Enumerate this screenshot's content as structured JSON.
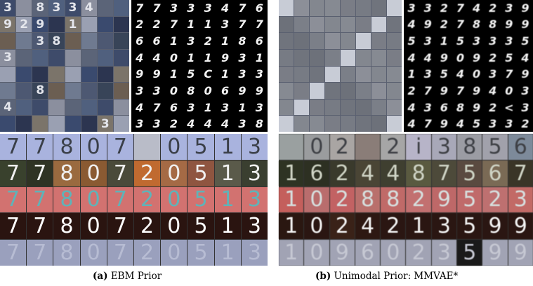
{
  "panels": [
    {
      "caption_tag": "(a)",
      "caption_text": "EBM Prior",
      "svhn_digits": [
        [
          "3",
          "",
          "8",
          "3",
          "3",
          "4",
          "",
          ""
        ],
        [
          "9",
          "2",
          "9",
          "",
          "1",
          "",
          "",
          ""
        ],
        [
          "",
          "",
          "3",
          "8",
          "",
          "",
          "",
          ""
        ],
        [
          "3",
          "",
          "",
          "",
          "",
          "",
          "",
          ""
        ],
        [
          "",
          "",
          "",
          "",
          "",
          "",
          "",
          ""
        ],
        [
          "",
          "",
          "8",
          "",
          "",
          "",
          "",
          ""
        ],
        [
          "4",
          "",
          "",
          "",
          "",
          "",
          "",
          ""
        ],
        [
          "",
          "",
          "",
          "",
          "",
          "",
          "3",
          ""
        ]
      ],
      "mnist_digits": [
        [
          "7",
          "7",
          "3",
          "3",
          "3",
          "4",
          "7",
          "6"
        ],
        [
          "2",
          "2",
          "7",
          "1",
          "1",
          "3",
          "7",
          "7"
        ],
        [
          "6",
          "6",
          "1",
          "3",
          "2",
          "1",
          "8",
          "6"
        ],
        [
          "4",
          "4",
          "0",
          "1",
          "1",
          "9",
          "3",
          "1"
        ],
        [
          "9",
          "9",
          "1",
          "5",
          "C",
          "1",
          "3",
          "3"
        ],
        [
          "3",
          "3",
          "0",
          "8",
          "0",
          "6",
          "9",
          "9"
        ],
        [
          "4",
          "7",
          "6",
          "3",
          "1",
          "3",
          "1",
          "3"
        ],
        [
          "3",
          "3",
          "2",
          "4",
          "4",
          "4",
          "3",
          "8"
        ]
      ],
      "color_rows": [
        {
          "bg": [
            "#a9b3de",
            "#a9b3de",
            "#a9b3de",
            "#a9b3de",
            "#a9b3de",
            "#b9bcc8",
            "#a9b3de",
            "#a9b3de",
            "#a9b3de",
            "#a9b3de"
          ],
          "fg": "#3a3f48",
          "digits": [
            "7",
            "7",
            "8",
            "0",
            "7",
            "",
            "0",
            "5",
            "1",
            "3"
          ]
        },
        {
          "bg": [
            "#39412d",
            "#2f3324",
            "#9a6a3f",
            "#8a5a32",
            "#4a4a3a",
            "#c06a30",
            "#a56a45",
            "#8f5540",
            "#5a5a4a",
            "#3a3f30"
          ],
          "fg": "#f0f0f0",
          "digits": [
            "7",
            "7",
            "8",
            "0",
            "7",
            "2",
            "0",
            "5",
            "1",
            "3"
          ]
        },
        {
          "bg": [
            "#d27270",
            "#d27270",
            "#d27270",
            "#d27270",
            "#d27270",
            "#d27270",
            "#d27270",
            "#d27270",
            "#d27270",
            "#d27270"
          ],
          "fg": "#5fb3b8",
          "digits": [
            "7",
            "7",
            "8",
            "0",
            "7",
            "2",
            "0",
            "5",
            "1",
            "3"
          ]
        },
        {
          "bg": [
            "#2a1410",
            "#2a1410",
            "#2a1410",
            "#2a1410",
            "#2a1410",
            "#2a1410",
            "#2a1410",
            "#2a1410",
            "#2a1410",
            "#2a1410"
          ],
          "fg": "#ffffff",
          "digits": [
            "7",
            "7",
            "8",
            "0",
            "7",
            "2",
            "0",
            "5",
            "1",
            "3"
          ]
        },
        {
          "bg": [
            "#9aa0bd",
            "#9aa0bd",
            "#9aa0bd",
            "#9aa0bd",
            "#9aa0bd",
            "#9aa0bd",
            "#9aa0bd",
            "#9aa0bd",
            "#9aa0bd",
            "#9aa0bd"
          ],
          "fg": "#b7bcd3",
          "digits": [
            "7",
            "7",
            "8",
            "0",
            "7",
            "2",
            "0",
            "5",
            "1",
            "3"
          ]
        }
      ]
    },
    {
      "caption_tag": "(b)",
      "caption_text": "Unimodal Prior: MMVAE*",
      "svhn_digits": [
        [
          "",
          "",
          "",
          "",
          "",
          "",
          "",
          ""
        ],
        [
          "",
          "",
          "",
          "",
          "",
          "",
          "",
          ""
        ],
        [
          "",
          "",
          "",
          "",
          "",
          "",
          "",
          ""
        ],
        [
          "",
          "",
          "",
          "",
          "",
          "",
          "",
          ""
        ],
        [
          "",
          "",
          "",
          "",
          "",
          "",
          "",
          ""
        ],
        [
          "",
          "",
          "",
          "",
          "",
          "",
          "",
          ""
        ],
        [
          "",
          "",
          "",
          "",
          "",
          "",
          "",
          ""
        ],
        [
          "",
          "",
          "",
          "",
          "",
          "",
          "",
          ""
        ]
      ],
      "mnist_digits": [
        [
          "3",
          "3",
          "2",
          "7",
          "4",
          "2",
          "3",
          "9"
        ],
        [
          "4",
          "9",
          "2",
          "7",
          "8",
          "8",
          "9",
          "9"
        ],
        [
          "5",
          "3",
          "1",
          "5",
          "3",
          "3",
          "3",
          "5"
        ],
        [
          "4",
          "4",
          "9",
          "0",
          "9",
          "2",
          "5",
          "4"
        ],
        [
          "1",
          "3",
          "5",
          "4",
          "0",
          "3",
          "7",
          "9"
        ],
        [
          "2",
          "7",
          "9",
          "7",
          "9",
          "4",
          "0",
          "3"
        ],
        [
          "4",
          "3",
          "6",
          "8",
          "9",
          "2",
          "<",
          "3"
        ],
        [
          "4",
          "7",
          "9",
          "4",
          "5",
          "3",
          "3",
          "2"
        ]
      ],
      "color_rows": [
        {
          "bg": [
            "#9aa0a0",
            "#9a9c9e",
            "#a9a5a3",
            "#8a7d78",
            "#a6a6a6",
            "#b7b4c8",
            "#a8a8b8",
            "#9b9ca3",
            "#a1a1ab",
            "#7d8a9a"
          ],
          "fg": "#3e4045",
          "digits": [
            "",
            "0",
            "2",
            "",
            "2",
            "i",
            "3",
            "8",
            "5",
            "6"
          ]
        },
        {
          "bg": [
            "#2e3323",
            "#2d3022",
            "#3a3a2c",
            "#4a4535",
            "#3f3f30",
            "#5a5a40",
            "#4d4a3a",
            "#5a4a40",
            "#7a6a55",
            "#3a3527"
          ],
          "fg": "#cfd4c5",
          "digits": [
            "1",
            "6",
            "2",
            "4",
            "4",
            "8",
            "7",
            "5",
            "6",
            "7"
          ]
        },
        {
          "bg": [
            "#c45f5c",
            "#b96d6d",
            "#c26263",
            "#b9706c",
            "#c06a68",
            "#c27070",
            "#be6868",
            "#c06a6a",
            "#be7070",
            "#c26a66"
          ],
          "fg": "#d6e0df",
          "digits": [
            "1",
            "0",
            "2",
            "8",
            "8",
            "2",
            "9",
            "5",
            "2",
            "3"
          ]
        },
        {
          "bg": [
            "#2a1711",
            "#2a1612",
            "#3a2218",
            "#2d1812",
            "#2a1612",
            "#2a1612",
            "#2a1612",
            "#2a1612",
            "#2a1612",
            "#2a1612"
          ],
          "fg": "#f3f3f3",
          "digits": [
            "1",
            "0",
            "2",
            "4",
            "2",
            "1",
            "3",
            "5",
            "9",
            "9"
          ]
        },
        {
          "bg": [
            "#a1a3b4",
            "#a1a3b4",
            "#a1a3b4",
            "#a1a3b4",
            "#a1a3b4",
            "#a1a3b4",
            "#a1a3b4",
            "#1a1a1a",
            "#a1a3b4",
            "#a1a3b4"
          ],
          "fg": "#c6c8d3",
          "digits": [
            "1",
            "0",
            "9",
            "6",
            "0",
            "2",
            "3",
            "5",
            "9",
            "9"
          ]
        }
      ]
    }
  ]
}
